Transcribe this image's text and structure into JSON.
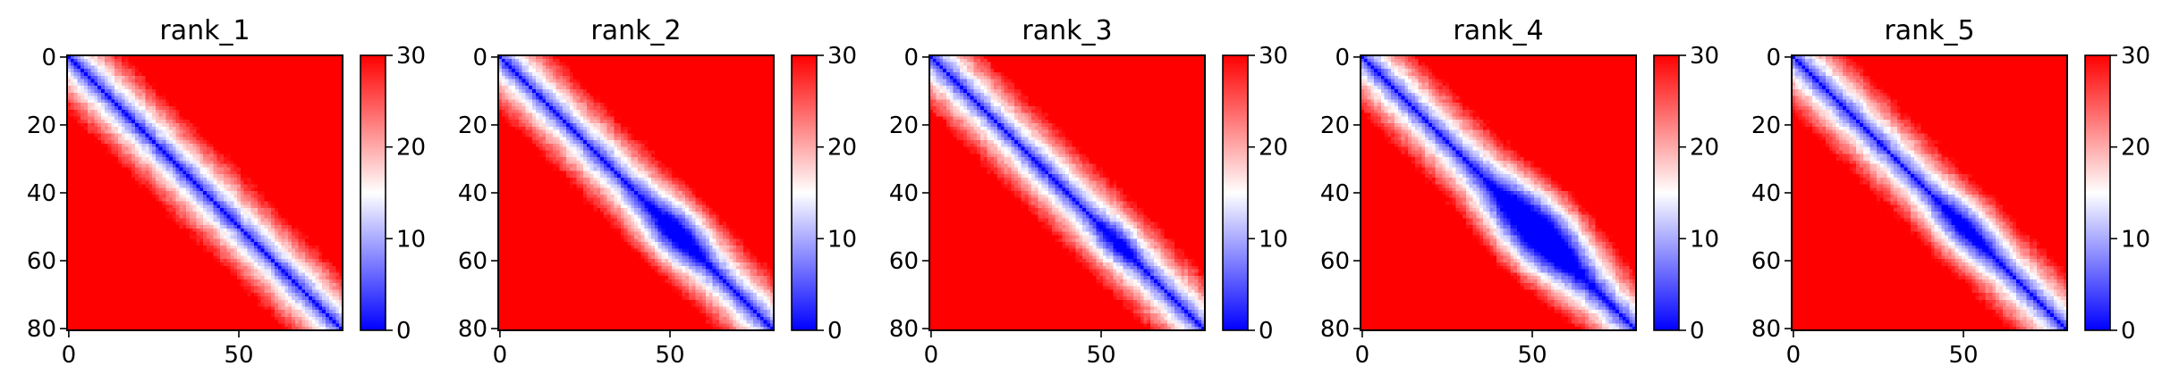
{
  "chart_data": [
    {
      "type": "heatmap",
      "title": "rank_1",
      "matrix_size": 81,
      "x_ticks": [
        0,
        50
      ],
      "y_ticks": [
        0,
        20,
        40,
        60,
        80
      ],
      "colorbar": {
        "min": 0,
        "max": 30,
        "ticks": [
          0,
          10,
          20,
          30
        ],
        "colormap": "bwr"
      },
      "diagonal_band_width": 6.5,
      "feature": {
        "center": 48,
        "radius": 0,
        "strength": 0
      }
    },
    {
      "type": "heatmap",
      "title": "rank_2",
      "matrix_size": 81,
      "x_ticks": [
        0,
        50
      ],
      "y_ticks": [
        0,
        20,
        40,
        60,
        80
      ],
      "colorbar": {
        "min": 0,
        "max": 30,
        "ticks": [
          0,
          10,
          20,
          30
        ],
        "colormap": "bwr"
      },
      "diagonal_band_width": 6.5,
      "feature": {
        "center": 52,
        "radius": 6,
        "strength": 10
      }
    },
    {
      "type": "heatmap",
      "title": "rank_3",
      "matrix_size": 81,
      "x_ticks": [
        0,
        50
      ],
      "y_ticks": [
        0,
        20,
        40,
        60,
        80
      ],
      "colorbar": {
        "min": 0,
        "max": 30,
        "ticks": [
          0,
          10,
          20,
          30
        ],
        "colormap": "bwr"
      },
      "diagonal_band_width": 6.5,
      "feature": {
        "center": 55,
        "radius": 4,
        "strength": 6
      }
    },
    {
      "type": "heatmap",
      "title": "rank_4",
      "matrix_size": 81,
      "x_ticks": [
        0,
        50
      ],
      "y_ticks": [
        0,
        20,
        40,
        60,
        80
      ],
      "colorbar": {
        "min": 0,
        "max": 30,
        "ticks": [
          0,
          10,
          20,
          30
        ],
        "colormap": "bwr"
      },
      "diagonal_band_width": 6.5,
      "feature": {
        "center": 52,
        "radius": 9,
        "strength": 16
      }
    },
    {
      "type": "heatmap",
      "title": "rank_5",
      "matrix_size": 81,
      "x_ticks": [
        0,
        50
      ],
      "y_ticks": [
        0,
        20,
        40,
        60,
        80
      ],
      "colorbar": {
        "min": 0,
        "max": 30,
        "ticks": [
          0,
          10,
          20,
          30
        ],
        "colormap": "bwr"
      },
      "diagonal_band_width": 6.5,
      "feature": {
        "center": 50,
        "radius": 5,
        "strength": 8
      }
    }
  ]
}
